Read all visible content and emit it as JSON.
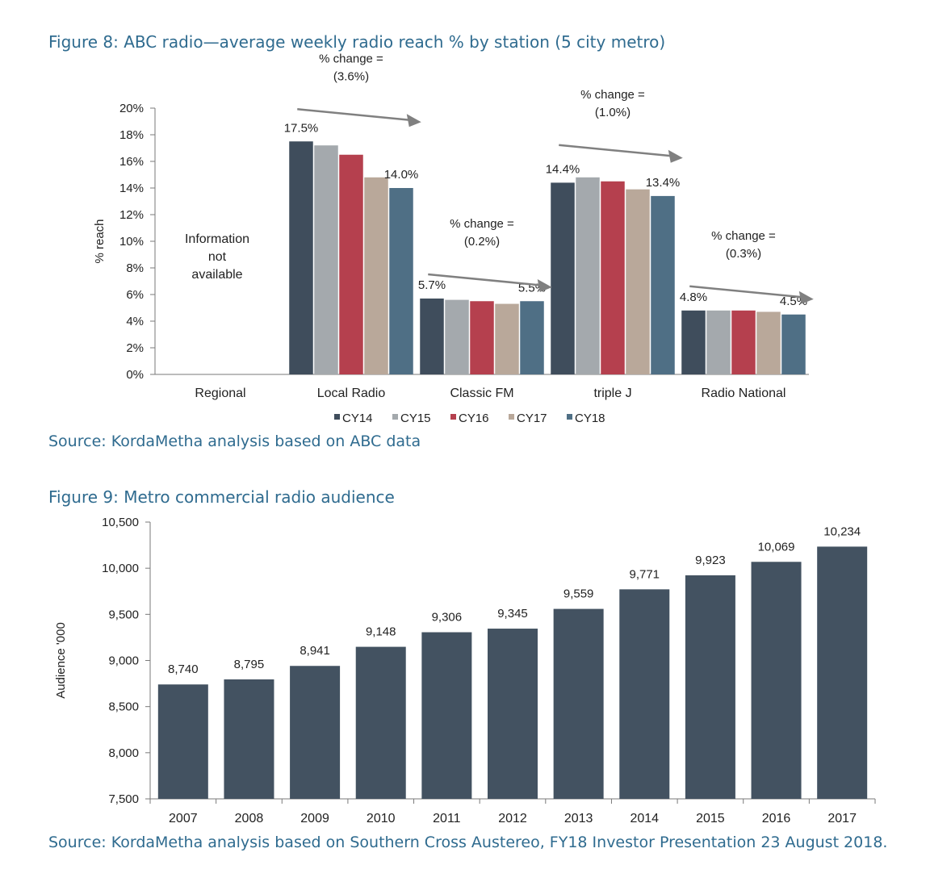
{
  "figure8": {
    "title": "Figure 8: ABC radio—average weekly radio reach % by station (5 city metro)",
    "source": "Source: KordaMetha analysis based on ABC data"
  },
  "figure9": {
    "title": "Figure 9: Metro commercial radio audience",
    "source": "Source: KordaMetha analysis based on Southern Cross Austereo, FY18 Investor Presentation 23 August 2018."
  },
  "colors": {
    "CY14": "#3f4d5c",
    "CY15": "#a4a9ad",
    "CY16": "#b5404e",
    "CY17": "#b9a89a",
    "CY18": "#4f6f85",
    "fig9_bar": "#435261",
    "title": "#2f6b8f",
    "arrow": "#808080"
  },
  "chart_data": [
    {
      "type": "bar",
      "ylabel": "% reach",
      "ylim": [
        0,
        20
      ],
      "yticks": [
        0,
        2,
        4,
        6,
        8,
        10,
        12,
        14,
        16,
        18,
        20
      ],
      "ytick_suffix": "%",
      "categories": [
        "Regional",
        "Local Radio",
        "Classic FM",
        "triple J",
        "Radio National"
      ],
      "series": [
        {
          "name": "CY14",
          "values": [
            null,
            17.5,
            5.7,
            14.4,
            4.8
          ]
        },
        {
          "name": "CY15",
          "values": [
            null,
            17.2,
            5.6,
            14.8,
            4.8
          ]
        },
        {
          "name": "CY16",
          "values": [
            null,
            16.5,
            5.5,
            14.5,
            4.8
          ]
        },
        {
          "name": "CY17",
          "values": [
            null,
            14.8,
            5.3,
            13.9,
            4.7
          ]
        },
        {
          "name": "CY18",
          "values": [
            null,
            14.0,
            5.5,
            13.4,
            4.5
          ]
        }
      ],
      "data_labels": [
        {
          "category": 1,
          "series": 0,
          "text": "17.5%"
        },
        {
          "category": 1,
          "series": 4,
          "text": "14.0%"
        },
        {
          "category": 2,
          "series": 0,
          "text": "5.7%"
        },
        {
          "category": 2,
          "series": 4,
          "text": "5.5%"
        },
        {
          "category": 3,
          "series": 0,
          "text": "14.4%"
        },
        {
          "category": 3,
          "series": 4,
          "text": "13.4%"
        },
        {
          "category": 4,
          "series": 0,
          "text": "4.8%"
        },
        {
          "category": 4,
          "series": 4,
          "text": "4.5%"
        }
      ],
      "annotations": [
        {
          "category": 0,
          "lines": [
            "Information",
            "not",
            "available"
          ]
        },
        {
          "category": 1,
          "lines": [
            "% change =",
            "(3.6%)"
          ]
        },
        {
          "category": 2,
          "lines": [
            "% change =",
            "(0.2%)"
          ]
        },
        {
          "category": 3,
          "lines": [
            "% change =",
            "(1.0%)"
          ]
        },
        {
          "category": 4,
          "lines": [
            "% change =",
            "(0.3%)"
          ]
        }
      ],
      "legend": "bottom",
      "grid": false
    },
    {
      "type": "bar",
      "ylabel": "Audience '000",
      "ylim": [
        7500,
        10500
      ],
      "yticks": [
        "7,500",
        "8,000",
        "8,500",
        "9,000",
        "9,500",
        "10,000",
        "10,500"
      ],
      "categories": [
        "2007",
        "2008",
        "2009",
        "2010",
        "2011",
        "2012",
        "2013",
        "2014",
        "2015",
        "2016",
        "2017"
      ],
      "values": [
        8740,
        8795,
        8941,
        9148,
        9306,
        9345,
        9559,
        9771,
        9923,
        10069,
        10234
      ],
      "value_labels": [
        "8,740",
        "8,795",
        "8,941",
        "9,148",
        "9,306",
        "9,345",
        "9,559",
        "9,771",
        "9,923",
        "10,069",
        "10,234"
      ],
      "grid": false
    }
  ]
}
